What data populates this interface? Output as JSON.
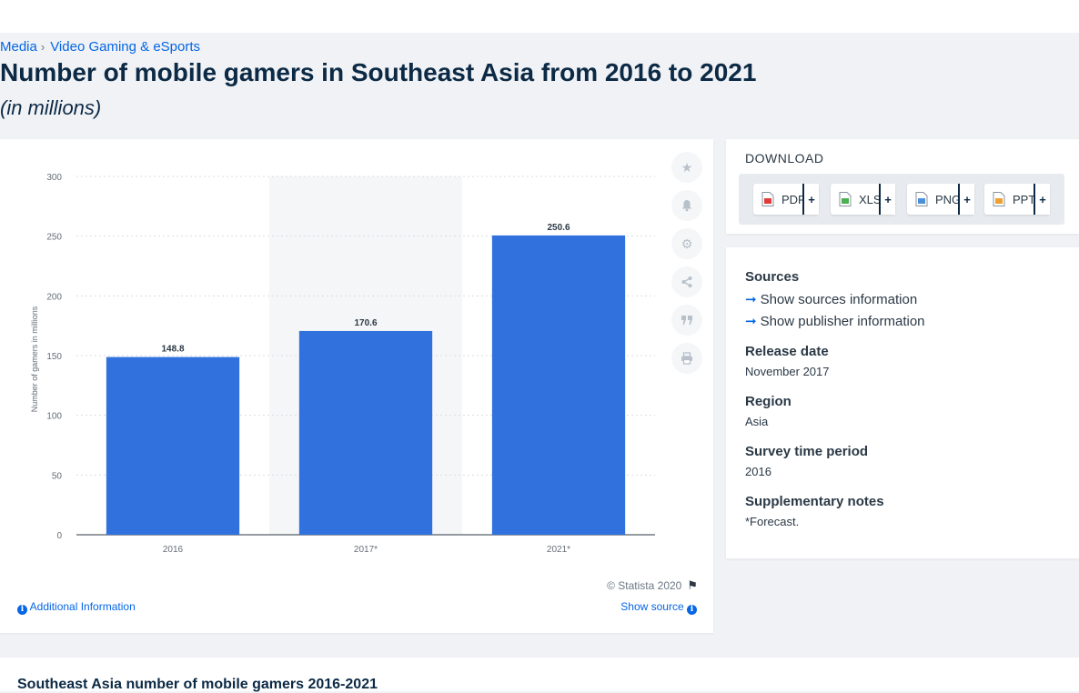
{
  "breadcrumb": [
    "Media",
    "Video Gaming & eSports"
  ],
  "page": {
    "title": "Number of mobile gamers in Southeast Asia from 2016 to 2021",
    "subtitle": "(in millions)"
  },
  "chart_data": {
    "type": "bar",
    "categories": [
      "2016",
      "2017*",
      "2021*"
    ],
    "values": [
      148.8,
      170.6,
      250.6
    ],
    "data_labels": [
      "148.8",
      "170.6",
      "250.6"
    ],
    "xlabel": "",
    "ylabel": "Number of gamers in millions",
    "ylim": [
      0,
      300
    ],
    "yticks": [
      "0",
      "50",
      "100",
      "150",
      "200",
      "250",
      "300"
    ],
    "ytick_values": [
      0,
      50,
      100,
      150,
      200,
      250,
      300
    ],
    "grid": true,
    "legend": "none",
    "bar_color": "#3071de",
    "highlighted_category": "2017*"
  },
  "chart_footer": {
    "copyright": "© Statista 2020",
    "additional_info": "Additional Information",
    "show_source": "Show source"
  },
  "tools": [
    "star-icon",
    "bell-icon",
    "gear-icon",
    "share-icon",
    "quote-icon",
    "print-icon"
  ],
  "download": {
    "title": "DOWNLOAD",
    "formats": [
      {
        "label": "PDF",
        "icon": "pdf-file-icon",
        "color": "#e23b3b"
      },
      {
        "label": "XLS",
        "icon": "xls-file-icon",
        "color": "#4caf50"
      },
      {
        "label": "PNG",
        "icon": "png-file-icon",
        "color": "#4a90d9"
      },
      {
        "label": "PPT",
        "icon": "ppt-file-icon",
        "color": "#f0a030"
      }
    ],
    "plus": "+"
  },
  "meta": {
    "sources_heading": "Sources",
    "show_sources": "Show sources information",
    "show_publisher": "Show publisher information",
    "release_heading": "Release date",
    "release_value": "November 2017",
    "region_heading": "Region",
    "region_value": "Asia",
    "survey_heading": "Survey time period",
    "survey_value": "2016",
    "notes_heading": "Supplementary notes",
    "notes_value": "*Forecast."
  },
  "bottom": {
    "title": "Southeast Asia number of mobile gamers 2016-2021"
  }
}
